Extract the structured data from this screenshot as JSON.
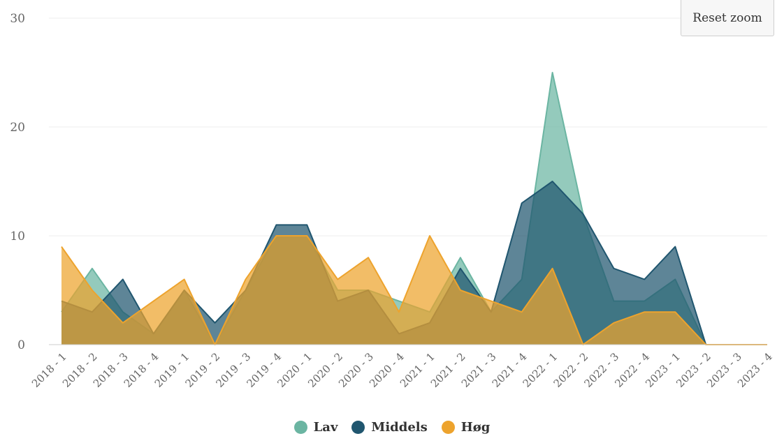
{
  "toolbar": {
    "reset_zoom_label": "Reset zoom"
  },
  "chart_data": {
    "type": "area",
    "title": "",
    "xlabel": "",
    "ylabel": "",
    "ylim": [
      0,
      30
    ],
    "yticks": [
      "0",
      "10",
      "20",
      "30"
    ],
    "grid": true,
    "legend_position": "bottom-center",
    "categories": [
      "2018 - 1",
      "2018 - 2",
      "2018 - 3",
      "2018 - 4",
      "2019 - 1",
      "2019 - 2",
      "2019 - 3",
      "2019 - 4",
      "2020 - 1",
      "2020 - 2",
      "2020 - 3",
      "2020 - 4",
      "2021 - 1",
      "2021 - 2",
      "2021 - 3",
      "2021 - 4",
      "2022 - 1",
      "2022 - 2",
      "2022 - 3",
      "2022 - 4",
      "2023 - 1",
      "2023 - 2",
      "2023 - 3",
      "2023 - 4"
    ],
    "series": [
      {
        "name": "Lav",
        "color": "#6bb5a2",
        "values": [
          3,
          7,
          3,
          1,
          5,
          0,
          5,
          10,
          10,
          5,
          5,
          4,
          3,
          8,
          3,
          6,
          25,
          12,
          4,
          4,
          6,
          0,
          0,
          0
        ]
      },
      {
        "name": "Middels",
        "color": "#20566f",
        "values": [
          4,
          3,
          6,
          1,
          5,
          2,
          5,
          11,
          11,
          4,
          5,
          1,
          2,
          7,
          3,
          13,
          15,
          12,
          7,
          6,
          9,
          0,
          0,
          0
        ]
      },
      {
        "name": "Høg",
        "color": "#eda32d",
        "values": [
          9,
          5,
          2,
          4,
          6,
          0,
          6,
          10,
          10,
          6,
          8,
          3,
          10,
          5,
          4,
          3,
          7,
          0,
          2,
          3,
          3,
          0,
          0,
          0
        ]
      }
    ]
  }
}
